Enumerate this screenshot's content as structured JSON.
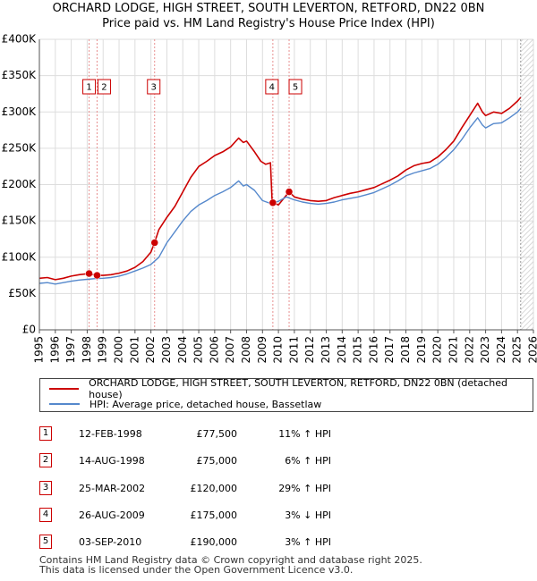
{
  "chart_data": {
    "type": "line",
    "title": "ORCHARD LODGE, HIGH STREET, SOUTH LEVERTON, RETFORD, DN22 0BN",
    "subtitle": "Price paid vs. HM Land Registry's House Price Index (HPI)",
    "xlabel": "",
    "ylabel": "",
    "xlim": [
      1995,
      2026
    ],
    "ylim": [
      0,
      400000
    ],
    "yticks": [
      0,
      50000,
      100000,
      150000,
      200000,
      250000,
      300000,
      350000,
      400000
    ],
    "ytick_labels": [
      "£0",
      "£50K",
      "£100K",
      "£150K",
      "£200K",
      "£250K",
      "£300K",
      "£350K",
      "£400K"
    ],
    "xticks": [
      1995,
      1996,
      1997,
      1998,
      1999,
      2000,
      2001,
      2002,
      2003,
      2004,
      2005,
      2006,
      2007,
      2008,
      2009,
      2010,
      2011,
      2012,
      2013,
      2014,
      2015,
      2016,
      2017,
      2018,
      2019,
      2020,
      2021,
      2022,
      2023,
      2024,
      2025,
      2026
    ],
    "xtick_labels": [
      "1995",
      "1996",
      "1997",
      "1998",
      "1999",
      "2000",
      "2001",
      "2002",
      "2003",
      "2004",
      "2005",
      "2006",
      "2007",
      "2008",
      "2009",
      "2010",
      "2011",
      "2012",
      "2013",
      "2014",
      "2015",
      "2016",
      "2017",
      "2018",
      "2019",
      "2020",
      "2021",
      "2022",
      "2023",
      "2024",
      "2025",
      "2026"
    ],
    "grid": true,
    "data_end": 2025.2,
    "series": [
      {
        "name": "ORCHARD LODGE, HIGH STREET, SOUTH LEVERTON, RETFORD, DN22 0BN (detached house)",
        "color": "#cc0000",
        "points": [
          [
            1995.0,
            71000
          ],
          [
            1995.5,
            72000
          ],
          [
            1996.0,
            69000
          ],
          [
            1996.5,
            71000
          ],
          [
            1997.0,
            74000
          ],
          [
            1997.5,
            76000
          ],
          [
            1998.12,
            77500
          ],
          [
            1998.4,
            76000
          ],
          [
            1998.62,
            75000
          ],
          [
            1999.0,
            75000
          ],
          [
            1999.5,
            76000
          ],
          [
            2000.0,
            78000
          ],
          [
            2000.5,
            81000
          ],
          [
            2001.0,
            86000
          ],
          [
            2001.5,
            94000
          ],
          [
            2002.0,
            107000
          ],
          [
            2002.23,
            120000
          ],
          [
            2002.5,
            138000
          ],
          [
            2003.0,
            155000
          ],
          [
            2003.5,
            170000
          ],
          [
            2004.0,
            190000
          ],
          [
            2004.5,
            210000
          ],
          [
            2005.0,
            225000
          ],
          [
            2005.5,
            232000
          ],
          [
            2006.0,
            240000
          ],
          [
            2006.5,
            245000
          ],
          [
            2007.0,
            252000
          ],
          [
            2007.5,
            264000
          ],
          [
            2007.8,
            258000
          ],
          [
            2008.0,
            260000
          ],
          [
            2008.5,
            245000
          ],
          [
            2008.9,
            232000
          ],
          [
            2009.2,
            228000
          ],
          [
            2009.5,
            230000
          ],
          [
            2009.6,
            178000
          ],
          [
            2009.65,
            175000
          ],
          [
            2010.0,
            172000
          ],
          [
            2010.3,
            180000
          ],
          [
            2010.67,
            190000
          ],
          [
            2011.0,
            183000
          ],
          [
            2011.5,
            180000
          ],
          [
            2012.0,
            178000
          ],
          [
            2012.5,
            177000
          ],
          [
            2013.0,
            178000
          ],
          [
            2013.5,
            182000
          ],
          [
            2014.0,
            185000
          ],
          [
            2014.5,
            188000
          ],
          [
            2015.0,
            190000
          ],
          [
            2015.5,
            193000
          ],
          [
            2016.0,
            196000
          ],
          [
            2016.5,
            201000
          ],
          [
            2017.0,
            206000
          ],
          [
            2017.5,
            212000
          ],
          [
            2018.0,
            220000
          ],
          [
            2018.5,
            226000
          ],
          [
            2019.0,
            229000
          ],
          [
            2019.5,
            231000
          ],
          [
            2020.0,
            238000
          ],
          [
            2020.5,
            248000
          ],
          [
            2021.0,
            260000
          ],
          [
            2021.5,
            278000
          ],
          [
            2022.0,
            295000
          ],
          [
            2022.5,
            312000
          ],
          [
            2022.8,
            300000
          ],
          [
            2023.0,
            295000
          ],
          [
            2023.5,
            300000
          ],
          [
            2024.0,
            298000
          ],
          [
            2024.5,
            305000
          ],
          [
            2025.0,
            315000
          ],
          [
            2025.2,
            320000
          ]
        ]
      },
      {
        "name": "HPI: Average price, detached house, Bassetlaw",
        "color": "#5588cc",
        "points": [
          [
            1995.0,
            64000
          ],
          [
            1995.5,
            65000
          ],
          [
            1996.0,
            63000
          ],
          [
            1996.5,
            65000
          ],
          [
            1997.0,
            67000
          ],
          [
            1997.5,
            68500
          ],
          [
            1998.0,
            69500
          ],
          [
            1998.5,
            70500
          ],
          [
            1999.0,
            71000
          ],
          [
            1999.5,
            72000
          ],
          [
            2000.0,
            74000
          ],
          [
            2000.5,
            77000
          ],
          [
            2001.0,
            81000
          ],
          [
            2001.5,
            85000
          ],
          [
            2002.0,
            90000
          ],
          [
            2002.5,
            100000
          ],
          [
            2003.0,
            120000
          ],
          [
            2003.5,
            135000
          ],
          [
            2004.0,
            150000
          ],
          [
            2004.5,
            163000
          ],
          [
            2005.0,
            172000
          ],
          [
            2005.5,
            178000
          ],
          [
            2006.0,
            185000
          ],
          [
            2006.5,
            190000
          ],
          [
            2007.0,
            196000
          ],
          [
            2007.5,
            205000
          ],
          [
            2007.8,
            198000
          ],
          [
            2008.0,
            200000
          ],
          [
            2008.5,
            192000
          ],
          [
            2009.0,
            178000
          ],
          [
            2009.5,
            174000
          ],
          [
            2010.0,
            177000
          ],
          [
            2010.5,
            183000
          ],
          [
            2011.0,
            179000
          ],
          [
            2011.5,
            176000
          ],
          [
            2012.0,
            174000
          ],
          [
            2012.5,
            173000
          ],
          [
            2013.0,
            174000
          ],
          [
            2013.5,
            176000
          ],
          [
            2014.0,
            179000
          ],
          [
            2014.5,
            181000
          ],
          [
            2015.0,
            183000
          ],
          [
            2015.5,
            186000
          ],
          [
            2016.0,
            189000
          ],
          [
            2016.5,
            194000
          ],
          [
            2017.0,
            199000
          ],
          [
            2017.5,
            205000
          ],
          [
            2018.0,
            212000
          ],
          [
            2018.5,
            216000
          ],
          [
            2019.0,
            219000
          ],
          [
            2019.5,
            222000
          ],
          [
            2020.0,
            228000
          ],
          [
            2020.5,
            237000
          ],
          [
            2021.0,
            248000
          ],
          [
            2021.5,
            262000
          ],
          [
            2022.0,
            278000
          ],
          [
            2022.5,
            292000
          ],
          [
            2022.8,
            282000
          ],
          [
            2023.0,
            278000
          ],
          [
            2023.5,
            284000
          ],
          [
            2024.0,
            285000
          ],
          [
            2024.5,
            292000
          ],
          [
            2025.0,
            300000
          ],
          [
            2025.2,
            305000
          ]
        ]
      }
    ],
    "sales": [
      {
        "label": "1",
        "year": 1998.12,
        "price": 77500
      },
      {
        "label": "2",
        "year": 1998.62,
        "price": 75000
      },
      {
        "label": "3",
        "year": 2002.23,
        "price": 120000
      },
      {
        "label": "4",
        "year": 2009.65,
        "price": 175000
      },
      {
        "label": "5",
        "year": 2010.67,
        "price": 190000
      }
    ]
  },
  "legend": {
    "property_label": "ORCHARD LODGE, HIGH STREET, SOUTH LEVERTON, RETFORD, DN22 0BN (detached house)",
    "property_color": "#cc0000",
    "hpi_label": "HPI: Average price, detached house, Bassetlaw",
    "hpi_color": "#5588cc"
  },
  "sales_table": [
    {
      "num": "1",
      "date": "12-FEB-1998",
      "price": "£77,500",
      "hpi": "11% ↑ HPI"
    },
    {
      "num": "2",
      "date": "14-AUG-1998",
      "price": "£75,000",
      "hpi": "6% ↑ HPI"
    },
    {
      "num": "3",
      "date": "25-MAR-2002",
      "price": "£120,000",
      "hpi": "29% ↑ HPI"
    },
    {
      "num": "4",
      "date": "26-AUG-2009",
      "price": "£175,000",
      "hpi": "3% ↓ HPI"
    },
    {
      "num": "5",
      "date": "03-SEP-2010",
      "price": "£190,000",
      "hpi": "3% ↑ HPI"
    }
  ],
  "footer": {
    "line1": "Contains HM Land Registry data © Crown copyright and database right 2025.",
    "line2": "This data is licensed under the Open Government Licence v3.0."
  }
}
